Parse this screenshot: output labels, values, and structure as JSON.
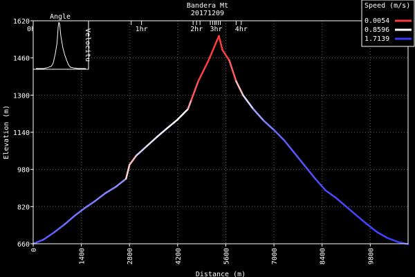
{
  "chart_data": {
    "type": "line",
    "title": "Bandera Mt",
    "subtitle": "20171209",
    "xlabel": "Distance (m)",
    "ylabel": "Elevation (m)",
    "xlim": [
      0,
      10900
    ],
    "ylim": [
      660,
      1620
    ],
    "x_ticks": [
      0,
      1400,
      2800,
      4200,
      5600,
      7000,
      8400,
      9800
    ],
    "y_ticks": [
      660,
      820,
      980,
      1140,
      1300,
      1460,
      1620
    ],
    "grid": true,
    "time_markers": [
      {
        "label": "0hr",
        "x": 0
      },
      {
        "label": "1hr",
        "x": 3150
      },
      {
        "label": "2hr",
        "x": 4750
      },
      {
        "label": "3hr",
        "x": 5320
      },
      {
        "label": "4hr",
        "x": 6050
      }
    ],
    "time_ticks": [
      2850,
      3150,
      4650,
      4750,
      4850,
      5150,
      5220,
      5280,
      5320,
      5380,
      5440,
      5900,
      6050
    ],
    "series": [
      {
        "x": [
          0,
          300,
          600,
          900,
          1200,
          1500,
          1800,
          2100,
          2400,
          2700,
          2800,
          3000,
          3300,
          3600,
          3900,
          4200,
          4500,
          4600,
          4800,
          5000,
          5100,
          5300,
          5400,
          5500,
          5700,
          5900,
          6100,
          6400,
          6700,
          7000,
          7300,
          7600,
          7900,
          8200,
          8500,
          8800,
          9100,
          9400,
          9700,
          10000,
          10300,
          10600,
          10900
        ],
        "y": [
          660,
          678,
          708,
          742,
          780,
          814,
          844,
          878,
          905,
          940,
          1000,
          1040,
          1080,
          1120,
          1158,
          1195,
          1240,
          1280,
          1360,
          1420,
          1450,
          1520,
          1555,
          1495,
          1450,
          1360,
          1300,
          1240,
          1190,
          1150,
          1105,
          1050,
          995,
          940,
          890,
          858,
          820,
          782,
          745,
          710,
          685,
          668,
          658
        ],
        "speed": [
          1.62,
          1.58,
          1.55,
          1.5,
          1.48,
          1.45,
          1.42,
          1.4,
          1.38,
          1.3,
          0.05,
          1.1,
          1.0,
          0.95,
          0.9,
          0.88,
          0.8,
          0.2,
          0.05,
          0.01,
          0.01,
          0.01,
          0.005,
          0.01,
          0.02,
          0.3,
          0.85,
          1.2,
          1.35,
          1.5,
          1.55,
          1.58,
          1.6,
          1.62,
          1.64,
          1.65,
          1.66,
          1.67,
          1.68,
          1.68,
          1.69,
          1.7,
          1.71
        ]
      }
    ],
    "legend": {
      "title": "Speed (m/s)",
      "placement": "top-right",
      "entries": [
        {
          "label": "0.0054",
          "color": "#ff3b3b"
        },
        {
          "label": "0.8596",
          "color": "#ffffff"
        },
        {
          "label": "1.7139",
          "color": "#3b3bff"
        }
      ]
    },
    "inset": {
      "title": "Angle",
      "right_label": "Velocitu",
      "x": [
        0,
        10,
        20,
        30,
        40,
        45,
        50,
        55,
        58,
        60,
        62,
        65,
        70,
        75,
        80,
        85,
        90,
        100,
        110,
        120,
        130
      ],
      "y": [
        0,
        0,
        0,
        0.02,
        0.05,
        0.12,
        0.3,
        0.55,
        0.9,
        1.0,
        0.95,
        0.7,
        0.45,
        0.3,
        0.18,
        0.08,
        0.03,
        0.01,
        0,
        0,
        0
      ]
    }
  }
}
